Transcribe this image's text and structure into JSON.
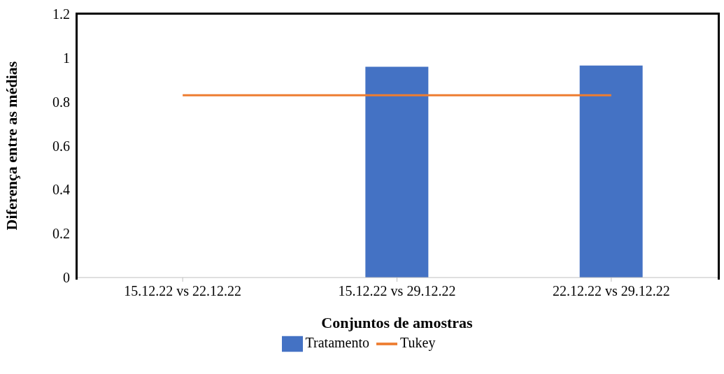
{
  "chart_data": {
    "type": "bar",
    "xlabel": "Conjuntos de amostras",
    "ylabel": "Diferença entre  as médias",
    "categories": [
      "15.12.22 vs 22.12.22",
      "15.12.22 vs 29.12.22",
      "22.12.22 vs 29.12.22"
    ],
    "series": [
      {
        "name": "Tratamento",
        "color": "#4472c4",
        "values": [
          0,
          0.96,
          0.965
        ]
      },
      {
        "name": "Tukey",
        "type": "line",
        "color": "#ed7d31",
        "values": [
          0.83,
          0.83,
          0.83
        ]
      }
    ],
    "ylim": [
      0,
      1.2
    ],
    "yticks": [
      0,
      0.2,
      0.4,
      0.6,
      0.8,
      1,
      1.2
    ],
    "legend": "bottom"
  }
}
